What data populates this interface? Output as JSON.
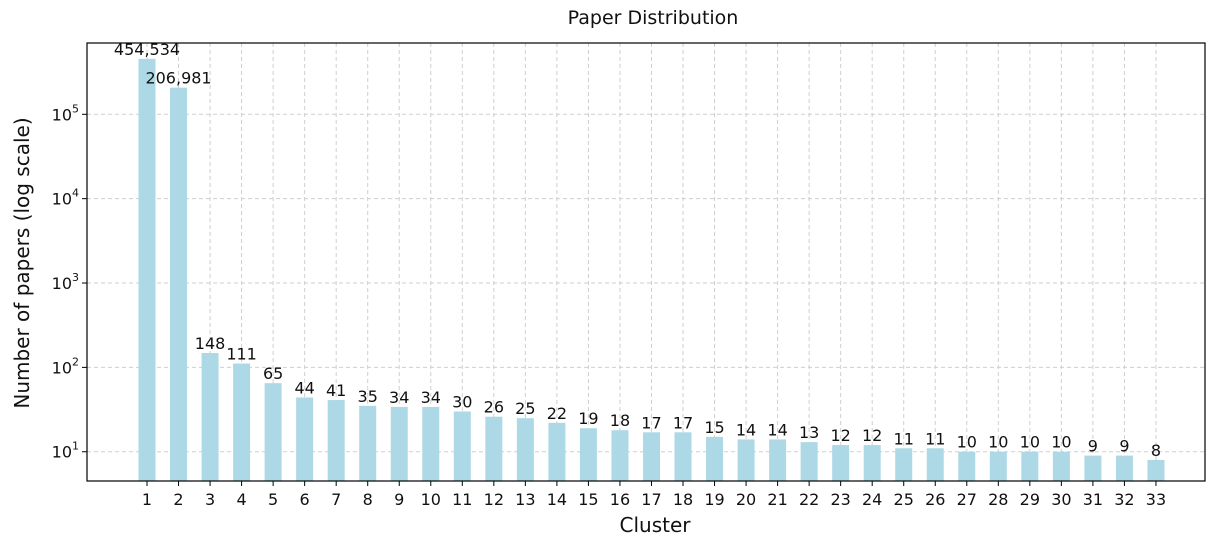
{
  "chart_data": {
    "type": "bar",
    "title": "Paper Distribution",
    "xlabel": "Cluster",
    "ylabel": "Number of papers (log scale)",
    "yscale": "log",
    "ylim": [
      4.5,
      700000
    ],
    "grid": true,
    "bar_color": "#add8e6",
    "categories": [
      "1",
      "2",
      "3",
      "4",
      "5",
      "6",
      "7",
      "8",
      "9",
      "10",
      "11",
      "12",
      "13",
      "14",
      "15",
      "16",
      "17",
      "18",
      "19",
      "20",
      "21",
      "22",
      "23",
      "24",
      "25",
      "26",
      "27",
      "28",
      "29",
      "30",
      "31",
      "32",
      "33"
    ],
    "values": [
      454534,
      206981,
      148,
      111,
      65,
      44,
      41,
      35,
      34,
      34,
      30,
      26,
      25,
      22,
      19,
      18,
      17,
      17,
      15,
      14,
      14,
      13,
      12,
      12,
      11,
      11,
      10,
      10,
      10,
      10,
      9,
      9,
      8
    ],
    "data_labels": [
      "454,534",
      "206,981",
      "148",
      "111",
      "65",
      "44",
      "41",
      "35",
      "34",
      "34",
      "30",
      "26",
      "25",
      "22",
      "19",
      "18",
      "17",
      "17",
      "15",
      "14",
      "14",
      "13",
      "12",
      "12",
      "11",
      "11",
      "10",
      "10",
      "10",
      "10",
      "9",
      "9",
      "8"
    ],
    "yticks": [
      {
        "value": 10,
        "base": "10",
        "exp": "1"
      },
      {
        "value": 100,
        "base": "10",
        "exp": "2"
      },
      {
        "value": 1000,
        "base": "10",
        "exp": "3"
      },
      {
        "value": 10000,
        "base": "10",
        "exp": "4"
      },
      {
        "value": 100000,
        "base": "10",
        "exp": "5"
      }
    ]
  }
}
